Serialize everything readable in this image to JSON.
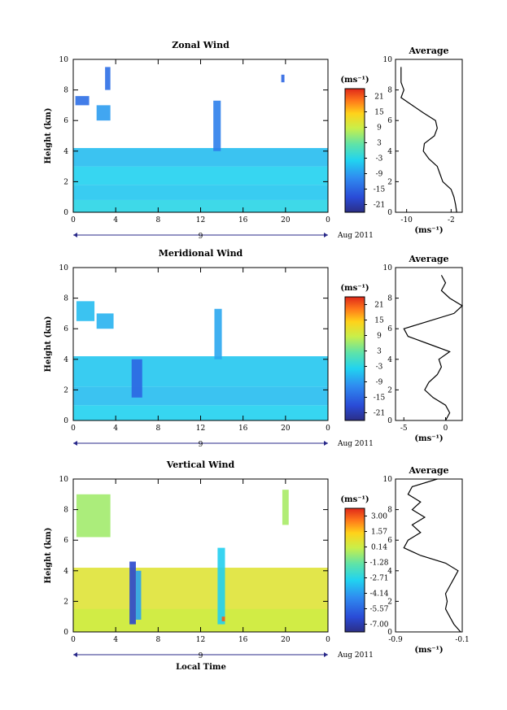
{
  "figure": {
    "xlabel_bottom": "Local Time",
    "date_label": "Aug 2011",
    "day_label": "9",
    "avg_title": "Average"
  },
  "chart_data": [
    {
      "type": "heatmap",
      "title": "Zonal Wind",
      "ylabel": "Height (km)",
      "xlim": [
        0,
        24
      ],
      "ylim": [
        0,
        10
      ],
      "x_ticks": [
        "0",
        "4",
        "8",
        "12",
        "16",
        "20",
        "0"
      ],
      "y_ticks": [
        "0",
        "2",
        "4",
        "6",
        "8",
        "10"
      ],
      "colorbar": {
        "unit": "(ms⁻¹)",
        "ticks": [
          "21",
          "15",
          "9",
          "3",
          "-3",
          "-9",
          "-15",
          "-21"
        ],
        "range": [
          -24,
          24
        ]
      },
      "average": {
        "xlim": [
          -12,
          0
        ],
        "x_ticks": [
          "-10",
          "-2"
        ],
        "xlabel": "(ms⁻¹)",
        "profile": [
          [
            0,
            -1
          ],
          [
            0.5,
            -1.2
          ],
          [
            1,
            -1.5
          ],
          [
            1.5,
            -2
          ],
          [
            2,
            -3.5
          ],
          [
            2.5,
            -4
          ],
          [
            3,
            -4.5
          ],
          [
            3.5,
            -6
          ],
          [
            4,
            -7
          ],
          [
            4.5,
            -6.8
          ],
          [
            5,
            -5
          ],
          [
            5.5,
            -4.5
          ],
          [
            6,
            -4.8
          ],
          [
            6.5,
            -7
          ],
          [
            7,
            -9
          ],
          [
            7.5,
            -11
          ],
          [
            8,
            -10.5
          ],
          [
            8.5,
            -11
          ],
          [
            9,
            -11
          ],
          [
            9.5,
            -11
          ]
        ]
      },
      "regions": [
        {
          "x0": 0,
          "x1": 24,
          "y0": 0,
          "y1": 0.8,
          "value": -3
        },
        {
          "x0": 0,
          "x1": 24,
          "y0": 0.8,
          "y1": 1.8,
          "value": -5
        },
        {
          "x0": 0,
          "x1": 24,
          "y0": 1.8,
          "y1": 3.0,
          "value": -4
        },
        {
          "x0": 0,
          "x1": 24,
          "y0": 3.0,
          "y1": 4.2,
          "value": -6
        },
        {
          "x0": 0.2,
          "x1": 1.5,
          "y0": 7.0,
          "y1": 7.6,
          "value": -14
        },
        {
          "x0": 2.2,
          "x1": 3.5,
          "y0": 6.0,
          "y1": 7.0,
          "value": -9
        },
        {
          "x0": 3.0,
          "x1": 3.5,
          "y0": 8.0,
          "y1": 9.5,
          "value": -14
        },
        {
          "x0": 13.2,
          "x1": 13.9,
          "y0": 4.0,
          "y1": 7.3,
          "value": -12
        },
        {
          "x0": 19.6,
          "x1": 19.9,
          "y0": 8.5,
          "y1": 9.0,
          "value": -15
        }
      ]
    },
    {
      "type": "heatmap",
      "title": "Meridional Wind",
      "ylabel": "Height (km)",
      "xlim": [
        0,
        24
      ],
      "ylim": [
        0,
        10
      ],
      "x_ticks": [
        "0",
        "4",
        "8",
        "12",
        "16",
        "20",
        "0"
      ],
      "y_ticks": [
        "0",
        "2",
        "4",
        "6",
        "8",
        "10"
      ],
      "colorbar": {
        "unit": "(ms⁻¹)",
        "ticks": [
          "21",
          "15",
          "9",
          "3",
          "-3",
          "-9",
          "-15",
          "-21"
        ],
        "range": [
          -24,
          24
        ]
      },
      "average": {
        "xlim": [
          -6,
          2
        ],
        "x_ticks": [
          "-5",
          "0"
        ],
        "xlabel": "(ms⁻¹)",
        "profile": [
          [
            0,
            0
          ],
          [
            0.5,
            0.5
          ],
          [
            1,
            0
          ],
          [
            1.5,
            -1.5
          ],
          [
            2,
            -2.5
          ],
          [
            2.5,
            -2
          ],
          [
            3,
            -1
          ],
          [
            3.5,
            -0.5
          ],
          [
            4,
            -0.8
          ],
          [
            4.5,
            0.5
          ],
          [
            5,
            -2
          ],
          [
            5.5,
            -4.5
          ],
          [
            6,
            -5
          ],
          [
            6.5,
            -2
          ],
          [
            7,
            1
          ],
          [
            7.5,
            2
          ],
          [
            8,
            0.5
          ],
          [
            8.5,
            -0.5
          ],
          [
            9,
            0
          ],
          [
            9.5,
            -0.5
          ]
        ]
      },
      "regions": [
        {
          "x0": 0,
          "x1": 24,
          "y0": 0,
          "y1": 1.0,
          "value": -4
        },
        {
          "x0": 0,
          "x1": 24,
          "y0": 1.0,
          "y1": 2.2,
          "value": -6
        },
        {
          "x0": 0,
          "x1": 24,
          "y0": 2.2,
          "y1": 4.2,
          "value": -5
        },
        {
          "x0": 5.5,
          "x1": 6.5,
          "y0": 1.5,
          "y1": 4.0,
          "value": -15
        },
        {
          "x0": 0.3,
          "x1": 2.0,
          "y0": 6.5,
          "y1": 7.8,
          "value": -6
        },
        {
          "x0": 2.2,
          "x1": 3.8,
          "y0": 6.0,
          "y1": 7.0,
          "value": -7
        },
        {
          "x0": 13.3,
          "x1": 14.0,
          "y0": 4.0,
          "y1": 7.3,
          "value": -8
        }
      ]
    },
    {
      "type": "heatmap",
      "title": "Vertical Wind",
      "ylabel": "Height (km)",
      "xlabel": "Local Time",
      "xlim": [
        0,
        24
      ],
      "ylim": [
        0,
        10
      ],
      "x_ticks": [
        "0",
        "4",
        "8",
        "12",
        "16",
        "20",
        "0"
      ],
      "y_ticks": [
        "0",
        "2",
        "4",
        "6",
        "8",
        "10"
      ],
      "colorbar": {
        "unit": "(ms⁻¹)",
        "ticks": [
          "3.00",
          "1.57",
          "0.14",
          "-1.28",
          "-2.71",
          "-4.14",
          "-5.57",
          "-7.00"
        ],
        "range": [
          -7.7,
          3.7
        ]
      },
      "average": {
        "xlim": [
          -0.9,
          -0.1
        ],
        "x_ticks": [
          "-0.9",
          "-0.1"
        ],
        "xlabel": "(ms⁻¹)",
        "profile": [
          [
            0,
            -0.12
          ],
          [
            0.5,
            -0.2
          ],
          [
            1,
            -0.25
          ],
          [
            1.5,
            -0.3
          ],
          [
            2,
            -0.28
          ],
          [
            2.5,
            -0.3
          ],
          [
            3,
            -0.25
          ],
          [
            3.5,
            -0.2
          ],
          [
            4,
            -0.15
          ],
          [
            4.5,
            -0.3
          ],
          [
            5,
            -0.6
          ],
          [
            5.5,
            -0.8
          ],
          [
            6,
            -0.75
          ],
          [
            6.5,
            -0.6
          ],
          [
            7,
            -0.7
          ],
          [
            7.5,
            -0.55
          ],
          [
            8,
            -0.7
          ],
          [
            8.5,
            -0.6
          ],
          [
            9,
            -0.75
          ],
          [
            9.5,
            -0.7
          ],
          [
            10,
            -0.4
          ]
        ]
      },
      "regions": [
        {
          "x0": 0,
          "x1": 24,
          "y0": 0,
          "y1": 4.2,
          "value": 0.6
        },
        {
          "x0": 0,
          "x1": 24,
          "y0": 0,
          "y1": 1.5,
          "value": 0.2
        },
        {
          "x0": 5.3,
          "x1": 5.9,
          "y0": 0.5,
          "y1": 4.6,
          "value": -6.5
        },
        {
          "x0": 5.9,
          "x1": 6.4,
          "y0": 0.8,
          "y1": 4.0,
          "value": -4
        },
        {
          "x0": 13.6,
          "x1": 14.3,
          "y0": 0.5,
          "y1": 5.5,
          "value": -3
        },
        {
          "x0": 14.0,
          "x1": 14.3,
          "y0": 0.7,
          "y1": 1.0,
          "value": 3.0
        },
        {
          "x0": 0.3,
          "x1": 3.5,
          "y0": 6.2,
          "y1": 9.0,
          "value": -0.5
        },
        {
          "x0": 19.7,
          "x1": 20.3,
          "y0": 7.0,
          "y1": 9.3,
          "value": -0.4
        }
      ]
    }
  ]
}
